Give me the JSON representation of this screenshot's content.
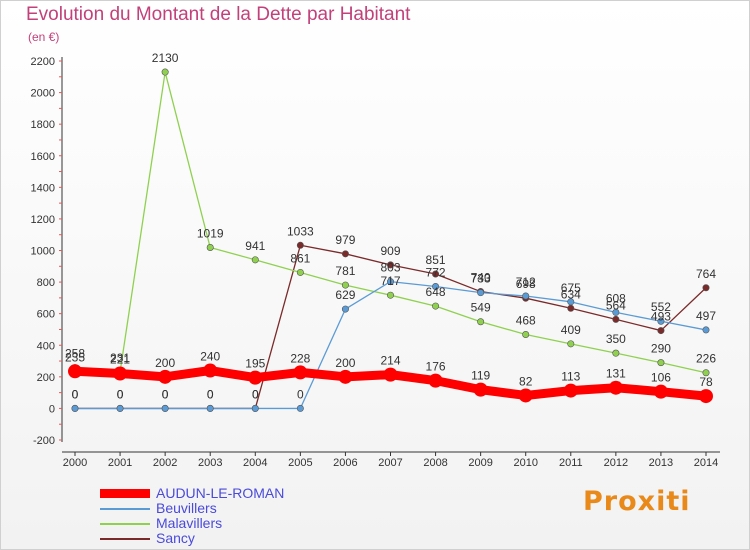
{
  "header": {
    "title": "Evolution du Montant de la Dette par Habitant",
    "subtitle": "(en €)"
  },
  "logo": {
    "text": "Proxiti"
  },
  "chart_data": {
    "type": "line",
    "title": "Evolution du Montant de la Dette par Habitant",
    "subtitle": "(en €)",
    "xlabel": "",
    "ylabel": "",
    "x": [
      "2000",
      "2001",
      "2002",
      "2003",
      "2004",
      "2005",
      "2006",
      "2007",
      "2008",
      "2009",
      "2010",
      "2011",
      "2012",
      "2013",
      "2014"
    ],
    "ylim": [
      -200,
      2200
    ],
    "yticks": [
      -200,
      0,
      200,
      400,
      600,
      800,
      1000,
      1200,
      1400,
      1600,
      1800,
      2000,
      2200
    ],
    "grid": false,
    "legend_position": "bottom-left",
    "series": [
      {
        "name": "AUDUN-LE-ROMAN",
        "color": "#ff0000",
        "values": [
          235,
          221,
          200,
          240,
          195,
          228,
          200,
          214,
          176,
          119,
          82,
          113,
          131,
          106,
          78
        ],
        "labels": [
          "235",
          "221",
          "200",
          "240",
          "195",
          "228",
          "200",
          "214",
          "176",
          "119",
          "82",
          "113",
          "131",
          "106",
          "78"
        ]
      },
      {
        "name": "Beuvillers",
        "color": "#5b9bd5",
        "values": [
          0,
          0,
          0,
          0,
          0,
          0,
          629,
          803,
          772,
          733,
          712,
          675,
          608,
          552,
          497
        ],
        "labels": [
          "0",
          "0",
          "0",
          "0",
          "0",
          "0",
          "629",
          "803",
          "772",
          "733",
          "712",
          "675",
          "608",
          "552",
          "497"
        ]
      },
      {
        "name": "Malavillers",
        "color": "#8fd14f",
        "values": [
          258,
          231,
          2130,
          1019,
          941,
          861,
          781,
          717,
          648,
          549,
          468,
          409,
          350,
          290,
          226
        ],
        "labels": [
          "258",
          "231",
          "2130",
          "1019",
          "941",
          "861",
          "781",
          "717",
          "648",
          "549",
          "468",
          "409",
          "350",
          "290",
          "226"
        ]
      },
      {
        "name": "Sancy",
        "color": "#7b2a2a",
        "values": [
          0,
          0,
          0,
          0,
          0,
          1033,
          979,
          909,
          851,
          740,
          698,
          634,
          564,
          493,
          764
        ],
        "labels": [
          "0",
          "0",
          "0",
          "0",
          "0",
          "1033",
          "979",
          "909",
          "851",
          "740",
          "698",
          "634",
          "564",
          "493",
          "764"
        ]
      }
    ]
  }
}
